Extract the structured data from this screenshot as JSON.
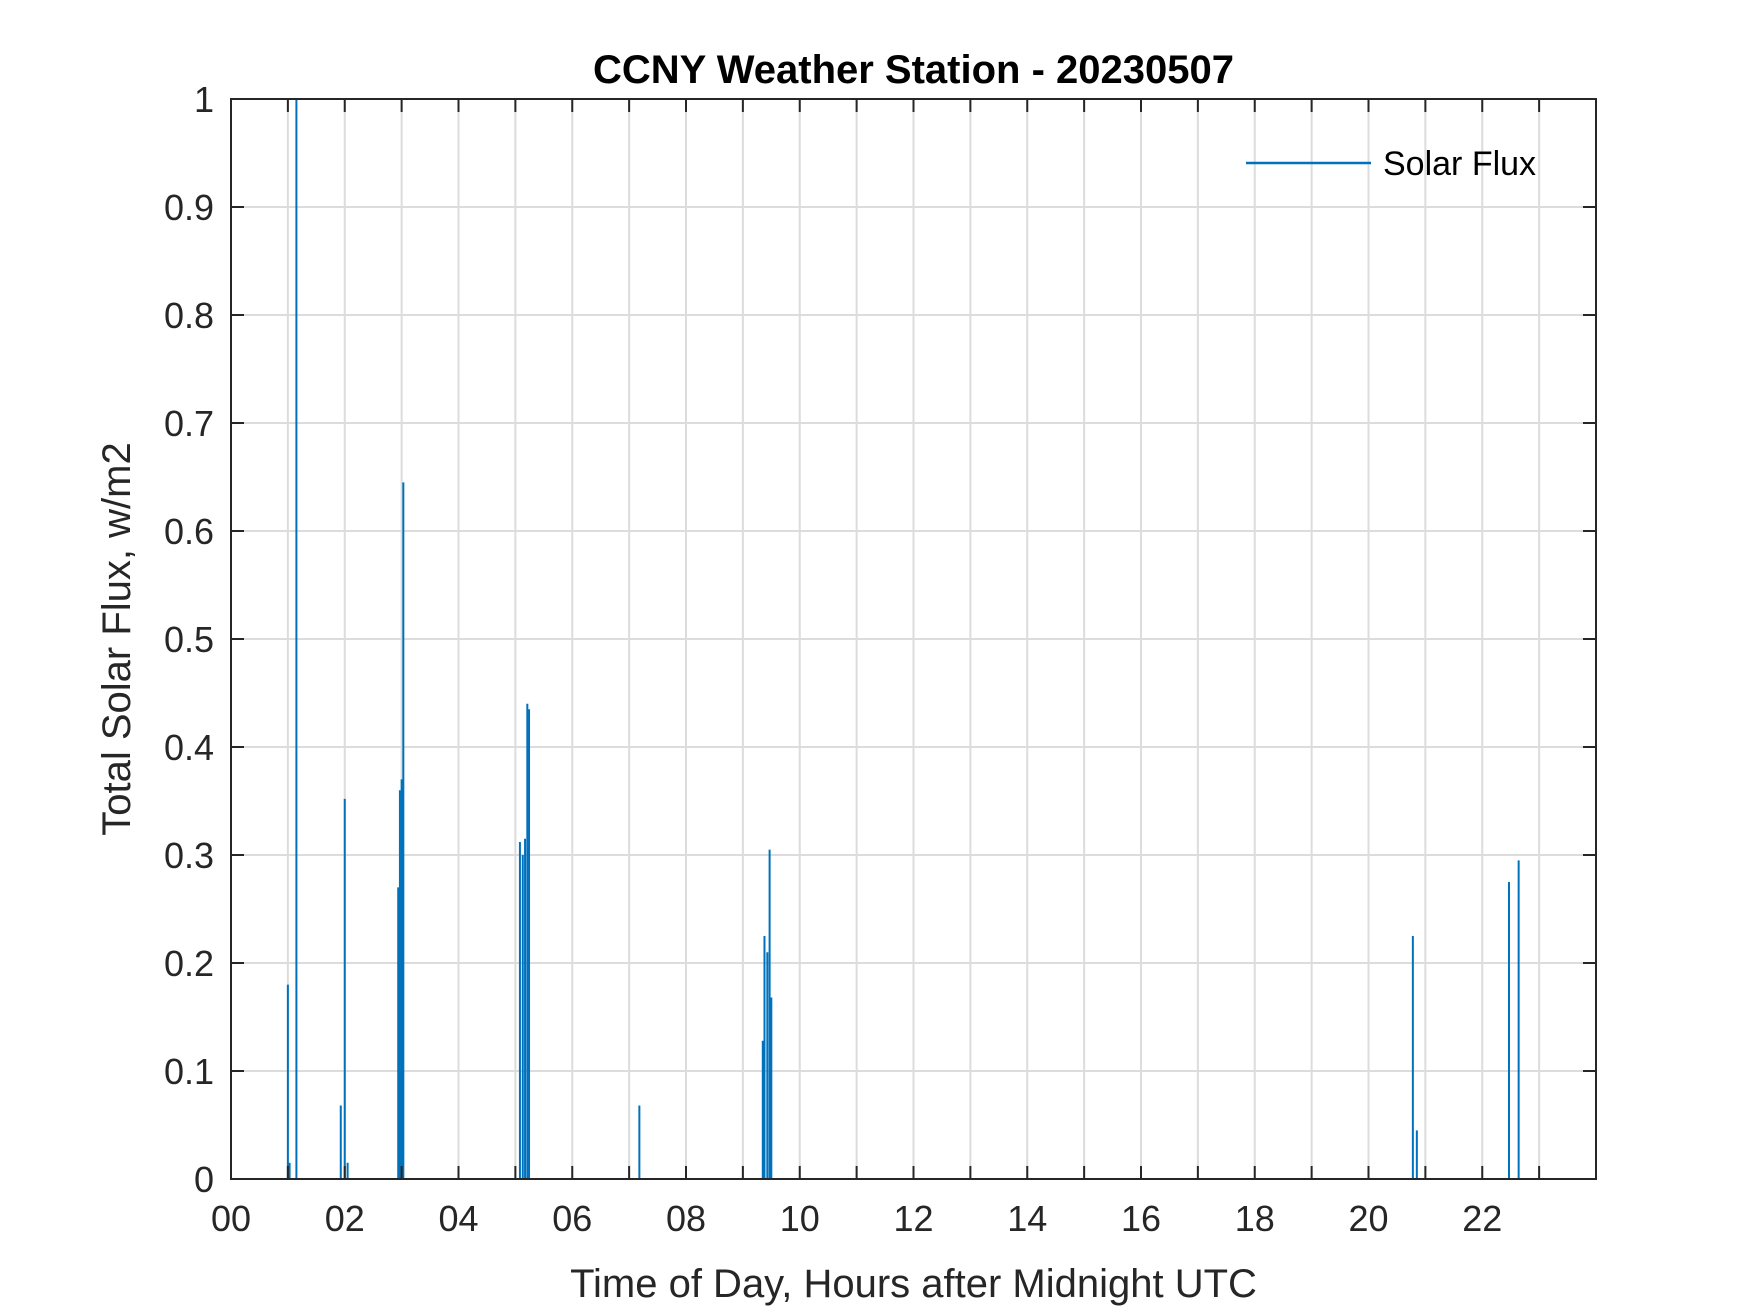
{
  "chart_data": {
    "type": "line",
    "title": "CCNY Weather Station - 20230507",
    "xlabel": "Time of Day, Hours after Midnight UTC",
    "ylabel": "Total Solar Flux, w/m2",
    "xlim": [
      0,
      24
    ],
    "ylim": [
      0,
      1
    ],
    "x_ticks": [
      0,
      2,
      4,
      6,
      8,
      10,
      12,
      14,
      16,
      18,
      20,
      22
    ],
    "x_tick_labels": [
      "00",
      "02",
      "04",
      "06",
      "08",
      "10",
      "12",
      "14",
      "16",
      "18",
      "20",
      "22"
    ],
    "y_ticks": [
      0,
      0.1,
      0.2,
      0.3,
      0.4,
      0.5,
      0.6,
      0.7,
      0.8,
      0.9,
      1
    ],
    "y_tick_labels": [
      "0",
      "0.1",
      "0.2",
      "0.3",
      "0.4",
      "0.5",
      "0.6",
      "0.7",
      "0.8",
      "0.9",
      "1"
    ],
    "grid": true,
    "legend_position": "top-right",
    "series": [
      {
        "name": "Solar Flux",
        "color": "#0072BD",
        "spikes": [
          {
            "x": 1.0,
            "y": 0.18
          },
          {
            "x": 1.03,
            "y": 0.015
          },
          {
            "x": 1.15,
            "y": 1.0
          },
          {
            "x": 1.93,
            "y": 0.068
          },
          {
            "x": 2.0,
            "y": 0.352
          },
          {
            "x": 2.05,
            "y": 0.015
          },
          {
            "x": 2.94,
            "y": 0.27
          },
          {
            "x": 2.97,
            "y": 0.36
          },
          {
            "x": 3.0,
            "y": 0.37
          },
          {
            "x": 3.03,
            "y": 0.645
          },
          {
            "x": 5.08,
            "y": 0.312
          },
          {
            "x": 5.13,
            "y": 0.3
          },
          {
            "x": 5.17,
            "y": 0.315
          },
          {
            "x": 5.21,
            "y": 0.44
          },
          {
            "x": 5.24,
            "y": 0.435
          },
          {
            "x": 7.18,
            "y": 0.068
          },
          {
            "x": 9.35,
            "y": 0.128
          },
          {
            "x": 9.38,
            "y": 0.225
          },
          {
            "x": 9.43,
            "y": 0.21
          },
          {
            "x": 9.47,
            "y": 0.305
          },
          {
            "x": 9.5,
            "y": 0.168
          },
          {
            "x": 20.78,
            "y": 0.225
          },
          {
            "x": 20.85,
            "y": 0.045
          },
          {
            "x": 22.47,
            "y": 0.275
          },
          {
            "x": 22.64,
            "y": 0.295
          }
        ]
      }
    ]
  }
}
